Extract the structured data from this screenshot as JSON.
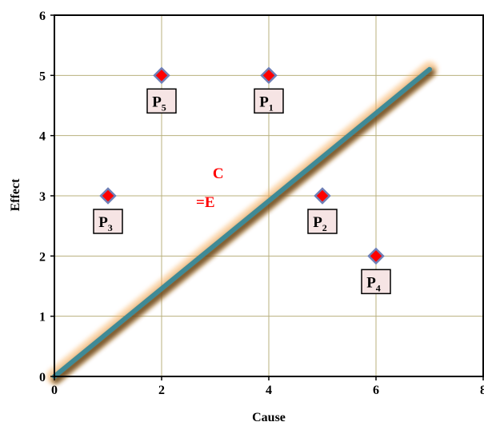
{
  "chart_data": {
    "type": "scatter",
    "title": "",
    "xlabel": "Cause",
    "ylabel": "Effect",
    "xlim": [
      0,
      8
    ],
    "ylim": [
      0,
      6
    ],
    "x_ticks": [
      "0",
      "2",
      "4",
      "6",
      "8"
    ],
    "y_ticks": [
      "0",
      "1",
      "2",
      "3",
      "4",
      "5",
      "6"
    ],
    "grid": true,
    "points": [
      {
        "name": "P",
        "sub": "1",
        "x": 4,
        "y": 5
      },
      {
        "name": "P",
        "sub": "2",
        "x": 5,
        "y": 3
      },
      {
        "name": "P",
        "sub": "3",
        "x": 1,
        "y": 3
      },
      {
        "name": "P",
        "sub": "4",
        "x": 6,
        "y": 2
      },
      {
        "name": "P",
        "sub": "5",
        "x": 2,
        "y": 5
      }
    ],
    "reference_line": {
      "x": [
        0,
        7
      ],
      "y": [
        0,
        5.1
      ]
    },
    "annotation": {
      "line1": "C",
      "line2": "=E",
      "x": 3.4,
      "y": 2.75
    },
    "colors": {
      "marker_fill": "#ff0000",
      "marker_stroke": "#6f7fb6",
      "line": "#3f8a96",
      "line_shadow": "#5a3a10",
      "line_glow": "#f7b060",
      "grid": "#b9b07e",
      "label_bg": "#f6e4e4",
      "annotation": "#ff0000"
    }
  }
}
